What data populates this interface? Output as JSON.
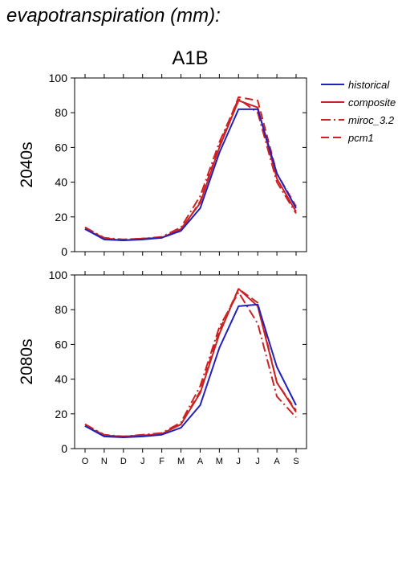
{
  "figure": {
    "title": "evapotranspiration (mm):",
    "scenario": "A1B"
  },
  "colors": {
    "historical": "#2222bb",
    "future": "#cc2222"
  },
  "legend": {
    "placement": "right",
    "entries": [
      {
        "label": "historical",
        "color": "#2222bb",
        "dash": "solid"
      },
      {
        "label": "composite",
        "color": "#cc2222",
        "dash": "solid"
      },
      {
        "label": "miroc_3.2",
        "color": "#cc2222",
        "dash": "dashdot"
      },
      {
        "label": "pcm1",
        "color": "#cc2222",
        "dash": "dashed"
      }
    ]
  },
  "chart_data": [
    {
      "type": "line",
      "panel_label": "2040s",
      "categories": [
        "O",
        "N",
        "D",
        "J",
        "F",
        "M",
        "A",
        "M",
        "J",
        "J",
        "A",
        "S"
      ],
      "ylim": [
        0,
        100
      ],
      "yticks": [
        0,
        20,
        40,
        60,
        80,
        100
      ],
      "series": [
        {
          "name": "historical",
          "values": [
            13,
            7,
            6.5,
            7,
            8,
            12,
            25,
            57,
            82,
            82,
            45,
            25
          ]
        },
        {
          "name": "composite",
          "values": [
            13,
            7.5,
            6.5,
            7.5,
            8,
            13,
            28,
            60,
            87,
            83,
            42,
            23
          ]
        },
        {
          "name": "miroc_3.2",
          "values": [
            14,
            8,
            7,
            7.5,
            8.5,
            14,
            32,
            63,
            88,
            80,
            40,
            22
          ]
        },
        {
          "name": "pcm1",
          "values": [
            14,
            7.5,
            7,
            7.5,
            8,
            12,
            29,
            61,
            89,
            87,
            45,
            26
          ]
        }
      ]
    },
    {
      "type": "line",
      "panel_label": "2080s",
      "categories": [
        "O",
        "N",
        "D",
        "J",
        "F",
        "M",
        "A",
        "M",
        "J",
        "J",
        "A",
        "S"
      ],
      "ylim": [
        0,
        100
      ],
      "yticks": [
        0,
        20,
        40,
        60,
        80,
        100
      ],
      "series": [
        {
          "name": "historical",
          "values": [
            13,
            7,
            6.5,
            7,
            8,
            12,
            25,
            58,
            82,
            83,
            47,
            25
          ]
        },
        {
          "name": "composite",
          "values": [
            13,
            7.5,
            7,
            7.5,
            8.5,
            14,
            32,
            66,
            92,
            82,
            38,
            21
          ]
        },
        {
          "name": "miroc_3.2",
          "values": [
            14,
            8,
            7,
            8,
            9,
            15,
            36,
            70,
            90,
            72,
            30,
            18
          ]
        },
        {
          "name": "pcm1",
          "values": [
            14,
            7.5,
            7,
            7.5,
            8.5,
            14,
            33,
            68,
            92,
            84,
            38,
            22
          ]
        }
      ]
    }
  ]
}
